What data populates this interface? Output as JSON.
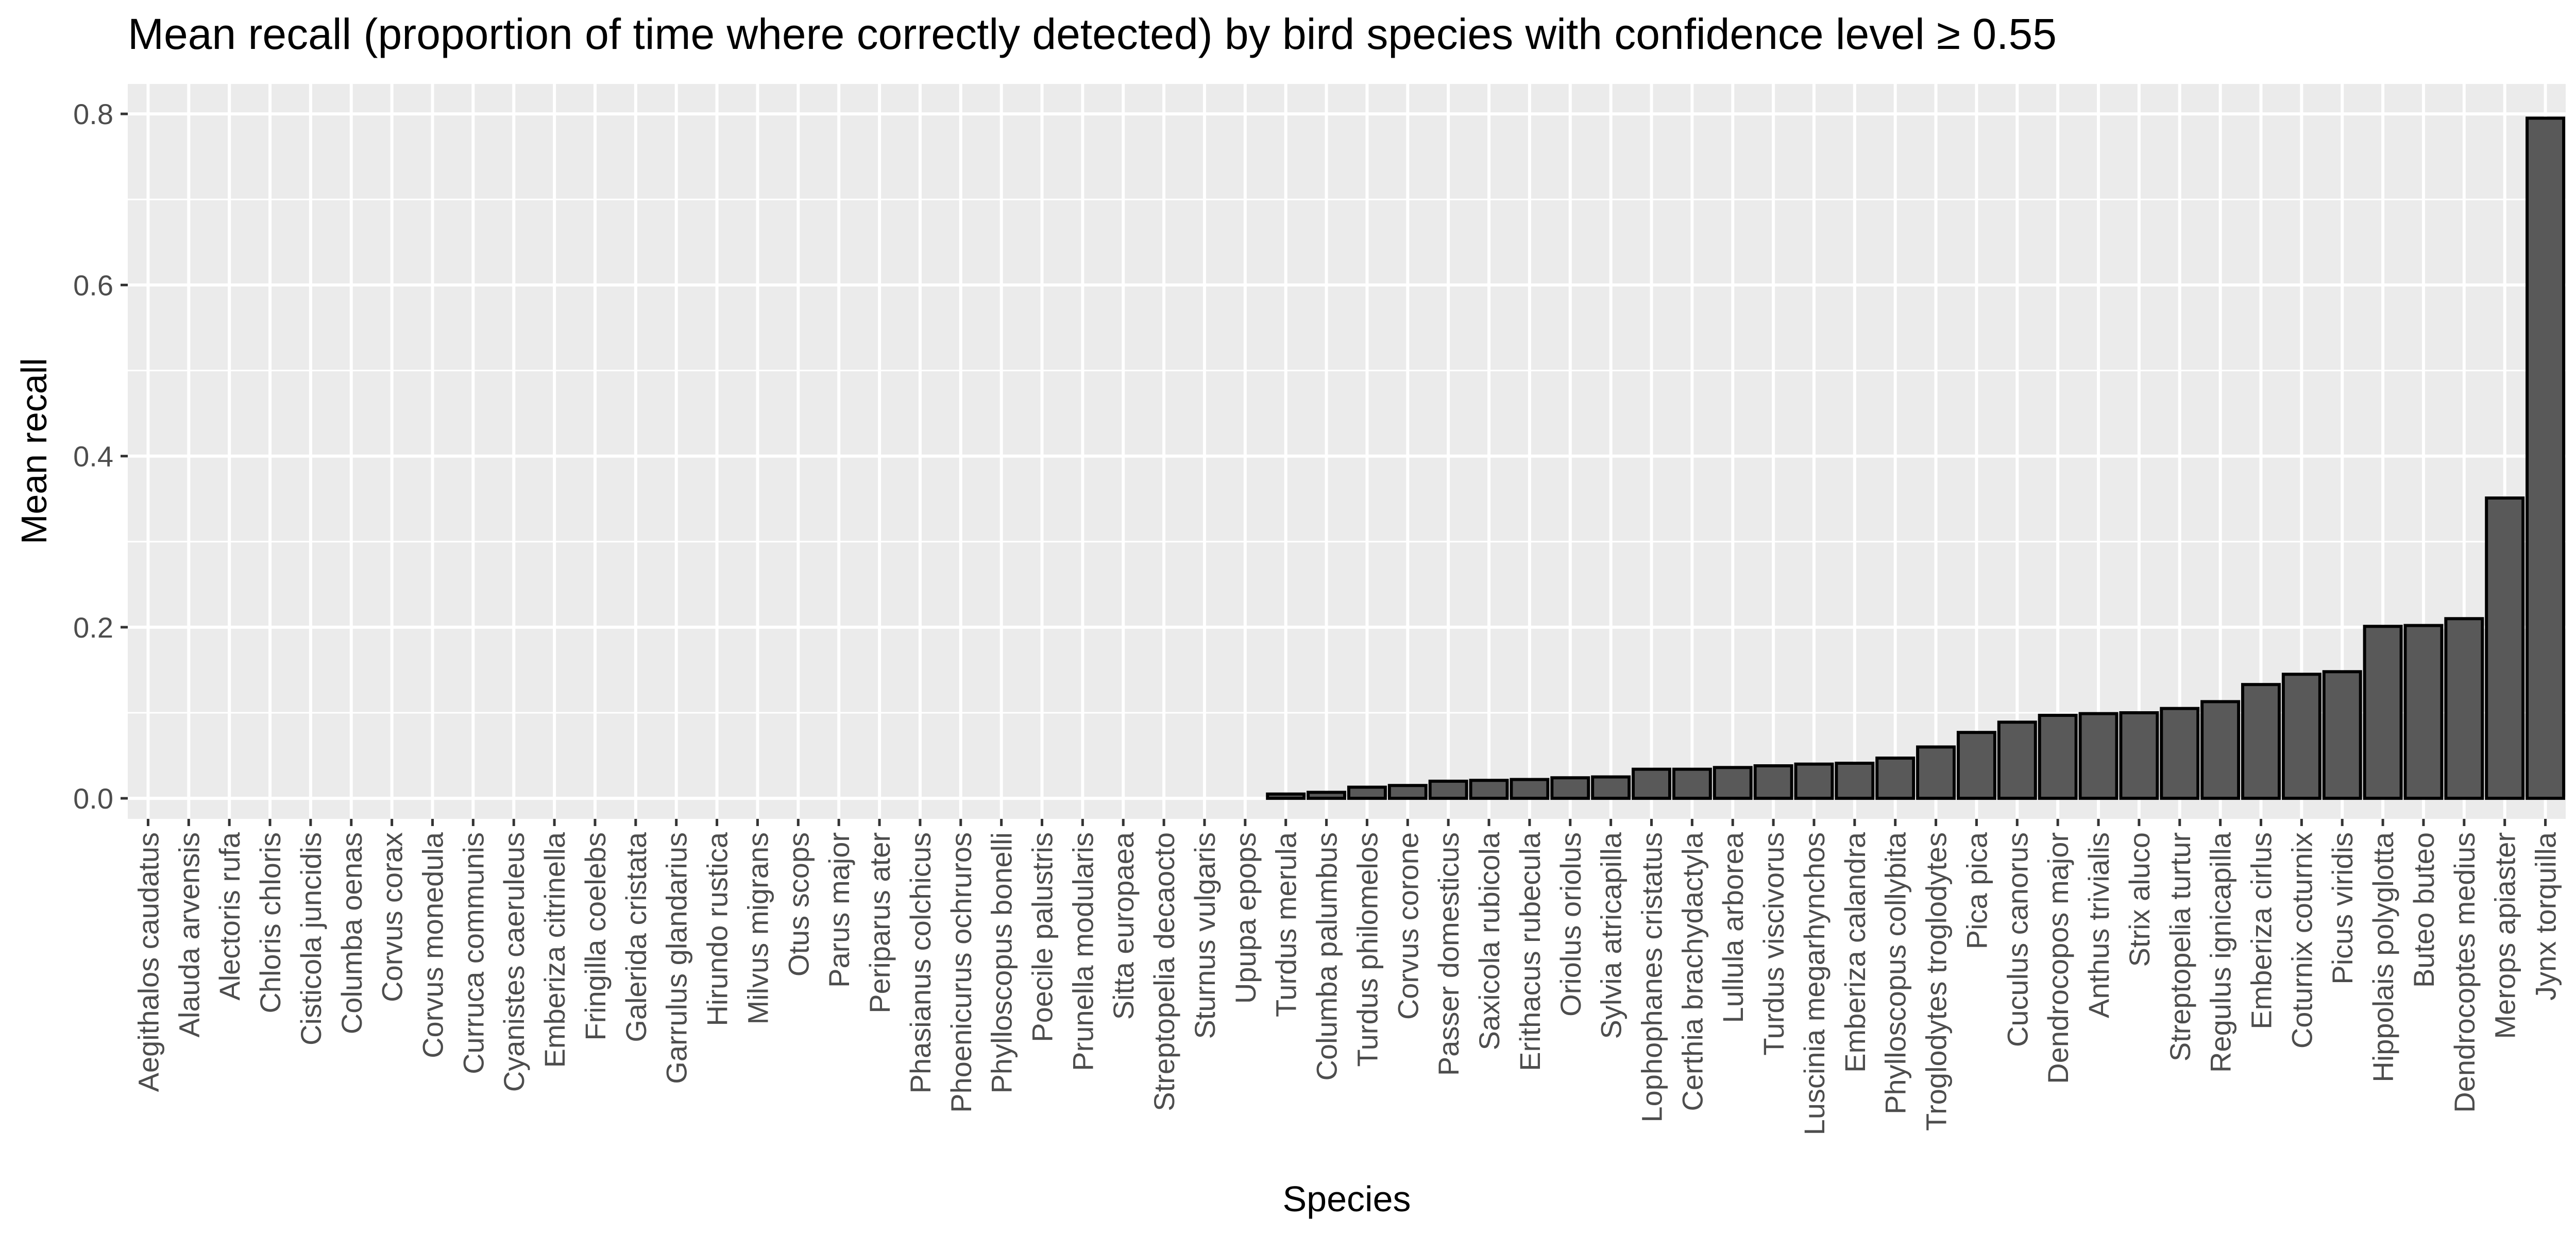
{
  "chart_data": {
    "type": "bar",
    "title": "Mean recall (proportion of time where correctly detected) by bird species with confidence level ≥ 0.55",
    "xlabel": "Species",
    "ylabel": "Mean recall",
    "ylim": [
      -0.024,
      0.835
    ],
    "yticks": [
      "0.0",
      "0.2",
      "0.4",
      "0.6",
      "0.8"
    ],
    "ytick_values": [
      0.0,
      0.2,
      0.4,
      0.6,
      0.8
    ],
    "grid": true,
    "legend": "none",
    "colors": {
      "bar_fill": "#595959",
      "bar_stroke": "#000000",
      "panel_bg": "#ebebeb",
      "grid": "#ffffff"
    },
    "categories": [
      "Aegithalos caudatus",
      "Alauda arvensis",
      "Alectoris rufa",
      "Chloris chloris",
      "Cisticola juncidis",
      "Columba oenas",
      "Corvus corax",
      "Corvus monedula",
      "Curruca communis",
      "Cyanistes caeruleus",
      "Emberiza citrinella",
      "Fringilla coelebs",
      "Galerida cristata",
      "Garrulus glandarius",
      "Hirundo rustica",
      "Milvus migrans",
      "Otus scops",
      "Parus major",
      "Periparus ater",
      "Phasianus colchicus",
      "Phoenicurus ochruros",
      "Phylloscopus bonelli",
      "Poecile palustris",
      "Prunella modularis",
      "Sitta europaea",
      "Streptopelia decaocto",
      "Sturnus vulgaris",
      "Upupa epops",
      "Turdus merula",
      "Columba palumbus",
      "Turdus philomelos",
      "Corvus corone",
      "Passer domesticus",
      "Saxicola rubicola",
      "Erithacus rubecula",
      "Oriolus oriolus",
      "Sylvia atricapilla",
      "Lophophanes cristatus",
      "Certhia brachydactyla",
      "Lullula arborea",
      "Turdus viscivorus",
      "Luscinia megarhynchos",
      "Emberiza calandra",
      "Phylloscopus collybita",
      "Troglodytes troglodytes",
      "Pica pica",
      "Cuculus canorus",
      "Dendrocopos major",
      "Anthus trivialis",
      "Strix aluco",
      "Streptopelia turtur",
      "Regulus ignicapilla",
      "Emberiza cirlus",
      "Coturnix coturnix",
      "Picus viridis",
      "Hippolais polyglotta",
      "Buteo buteo",
      "Dendrocoptes medius",
      "Merops apiaster",
      "Jynx torquilla"
    ],
    "values": [
      0,
      0,
      0,
      0,
      0,
      0,
      0,
      0,
      0,
      0,
      0,
      0,
      0,
      0,
      0,
      0,
      0,
      0,
      0,
      0,
      0,
      0,
      0,
      0,
      0,
      0,
      0,
      0,
      0.005,
      0.007,
      0.013,
      0.015,
      0.02,
      0.021,
      0.022,
      0.024,
      0.025,
      0.034,
      0.034,
      0.036,
      0.038,
      0.04,
      0.041,
      0.047,
      0.06,
      0.077,
      0.089,
      0.097,
      0.099,
      0.1,
      0.105,
      0.113,
      0.133,
      0.145,
      0.148,
      0.201,
      0.202,
      0.21,
      0.351,
      0.795
    ]
  }
}
